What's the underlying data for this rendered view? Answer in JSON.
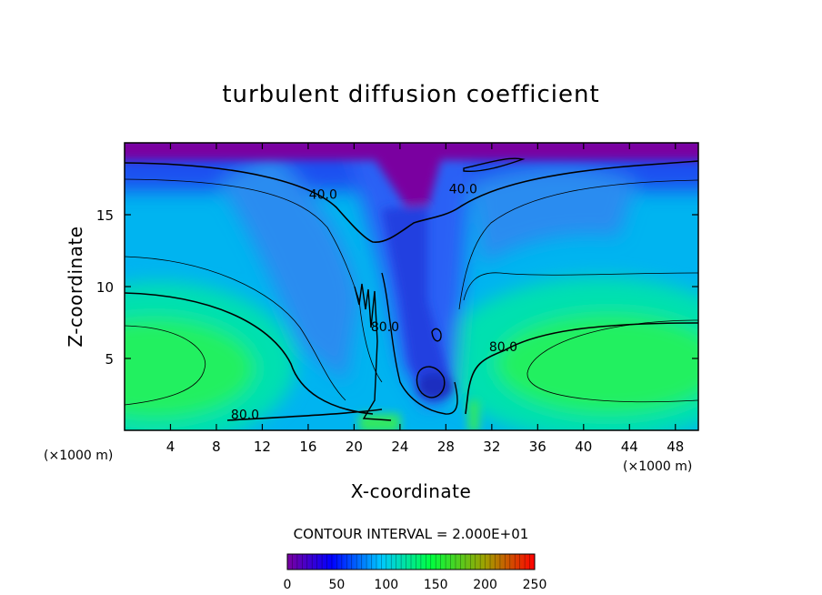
{
  "chart_data": {
    "type": "heatmap",
    "title": "turbulent diffusion coefficient",
    "xlabel": "X-coordinate",
    "ylabel": "Z-coordinate",
    "x_unit_left": "(×1000 m)",
    "x_unit_right": "(×1000 m)",
    "xlim": [
      0,
      50
    ],
    "ylim": [
      0,
      20
    ],
    "x_ticks": [
      "4",
      "8",
      "12",
      "16",
      "20",
      "24",
      "28",
      "32",
      "36",
      "40",
      "44",
      "48"
    ],
    "y_ticks": [
      "5",
      "10",
      "15"
    ],
    "contour_interval_text": "CONTOUR INTERVAL = 2.000E+01",
    "contour_labels": [
      {
        "text": "40.0",
        "x": 17.3,
        "y": 16.1
      },
      {
        "text": "40.0",
        "x": 29.5,
        "y": 16.5
      },
      {
        "text": "80.0",
        "x": 22.7,
        "y": 6.9
      },
      {
        "text": "80.0",
        "x": 33.0,
        "y": 5.5
      },
      {
        "text": "80.0",
        "x": 10.5,
        "y": 0.8
      }
    ],
    "colorbar": {
      "ticks": [
        "0",
        "50",
        "100",
        "150",
        "200",
        "250"
      ],
      "range": [
        0,
        250
      ],
      "colors": [
        "#7a00a0",
        "#0000ff",
        "#00c8ff",
        "#00ff40",
        "#ff0000"
      ]
    },
    "field_description_values": {
      "upper_band_z": [
        18.5,
        20
      ],
      "upper_band_value": 0,
      "left_lobe_center": [
        2,
        4.5
      ],
      "left_lobe_value": 150,
      "right_lobe_center": [
        45,
        4
      ],
      "right_lobe_value": 150,
      "central_minimum_center": [
        26.5,
        3
      ],
      "central_minimum_value": 20
    }
  }
}
